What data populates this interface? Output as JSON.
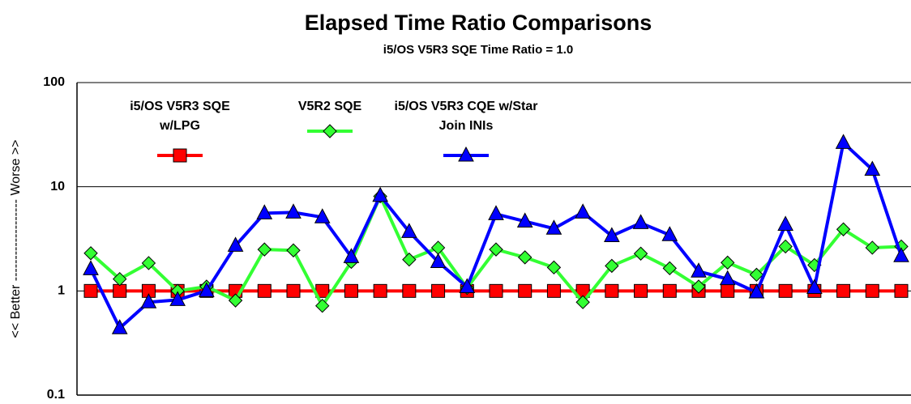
{
  "chart_data": {
    "type": "line",
    "title": "Elapsed Time Ratio Comparisons",
    "subtitle": "i5/OS V5R3 SQE Time Ratio = 1.0",
    "ylabel": "<< Better ------------------- Worse >>",
    "yscale": "log",
    "ylim": [
      0.1,
      100
    ],
    "yticks": [
      0.1,
      1,
      10,
      100
    ],
    "grid": true,
    "categories": [
      null,
      null,
      null,
      null,
      null,
      null,
      null,
      null,
      null,
      null,
      null,
      null,
      null,
      null,
      null,
      null,
      null,
      null,
      null,
      null,
      null,
      null,
      null,
      null,
      null,
      null,
      null,
      null,
      null
    ],
    "series": [
      {
        "name": "i5/OS V5R3 SQE w/LPG",
        "color": "#ff0000",
        "marker": "square",
        "values": [
          1,
          1,
          1,
          1,
          1,
          1,
          1,
          1,
          1,
          1,
          1,
          1,
          1,
          1,
          1,
          1,
          1,
          1,
          1,
          1,
          1,
          1,
          1,
          1,
          1,
          1,
          1,
          1,
          1
        ]
      },
      {
        "name": "V5R2 SQE",
        "color": "#33ff33",
        "marker": "diamond",
        "values": [
          2.3,
          1.3,
          1.85,
          1.0,
          1.1,
          0.81,
          2.5,
          2.45,
          0.72,
          1.9,
          8.1,
          2.0,
          2.6,
          1.07,
          2.5,
          2.1,
          1.68,
          0.78,
          1.74,
          2.28,
          1.65,
          1.1,
          1.87,
          1.43,
          2.67,
          1.77,
          3.9,
          2.6,
          2.67
        ]
      },
      {
        "name": "i5/OS V5R3 CQE w/Star Join INIs",
        "color": "#0000ff",
        "marker": "triangle",
        "values": [
          1.62,
          0.44,
          0.78,
          0.82,
          1.0,
          2.72,
          5.57,
          5.67,
          5.1,
          2.12,
          8.2,
          3.69,
          1.9,
          1.09,
          5.47,
          4.65,
          3.97,
          5.67,
          3.37,
          4.49,
          3.44,
          1.54,
          1.3,
          0.97,
          4.33,
          1.07,
          26.4,
          14.6,
          2.16
        ]
      }
    ]
  }
}
